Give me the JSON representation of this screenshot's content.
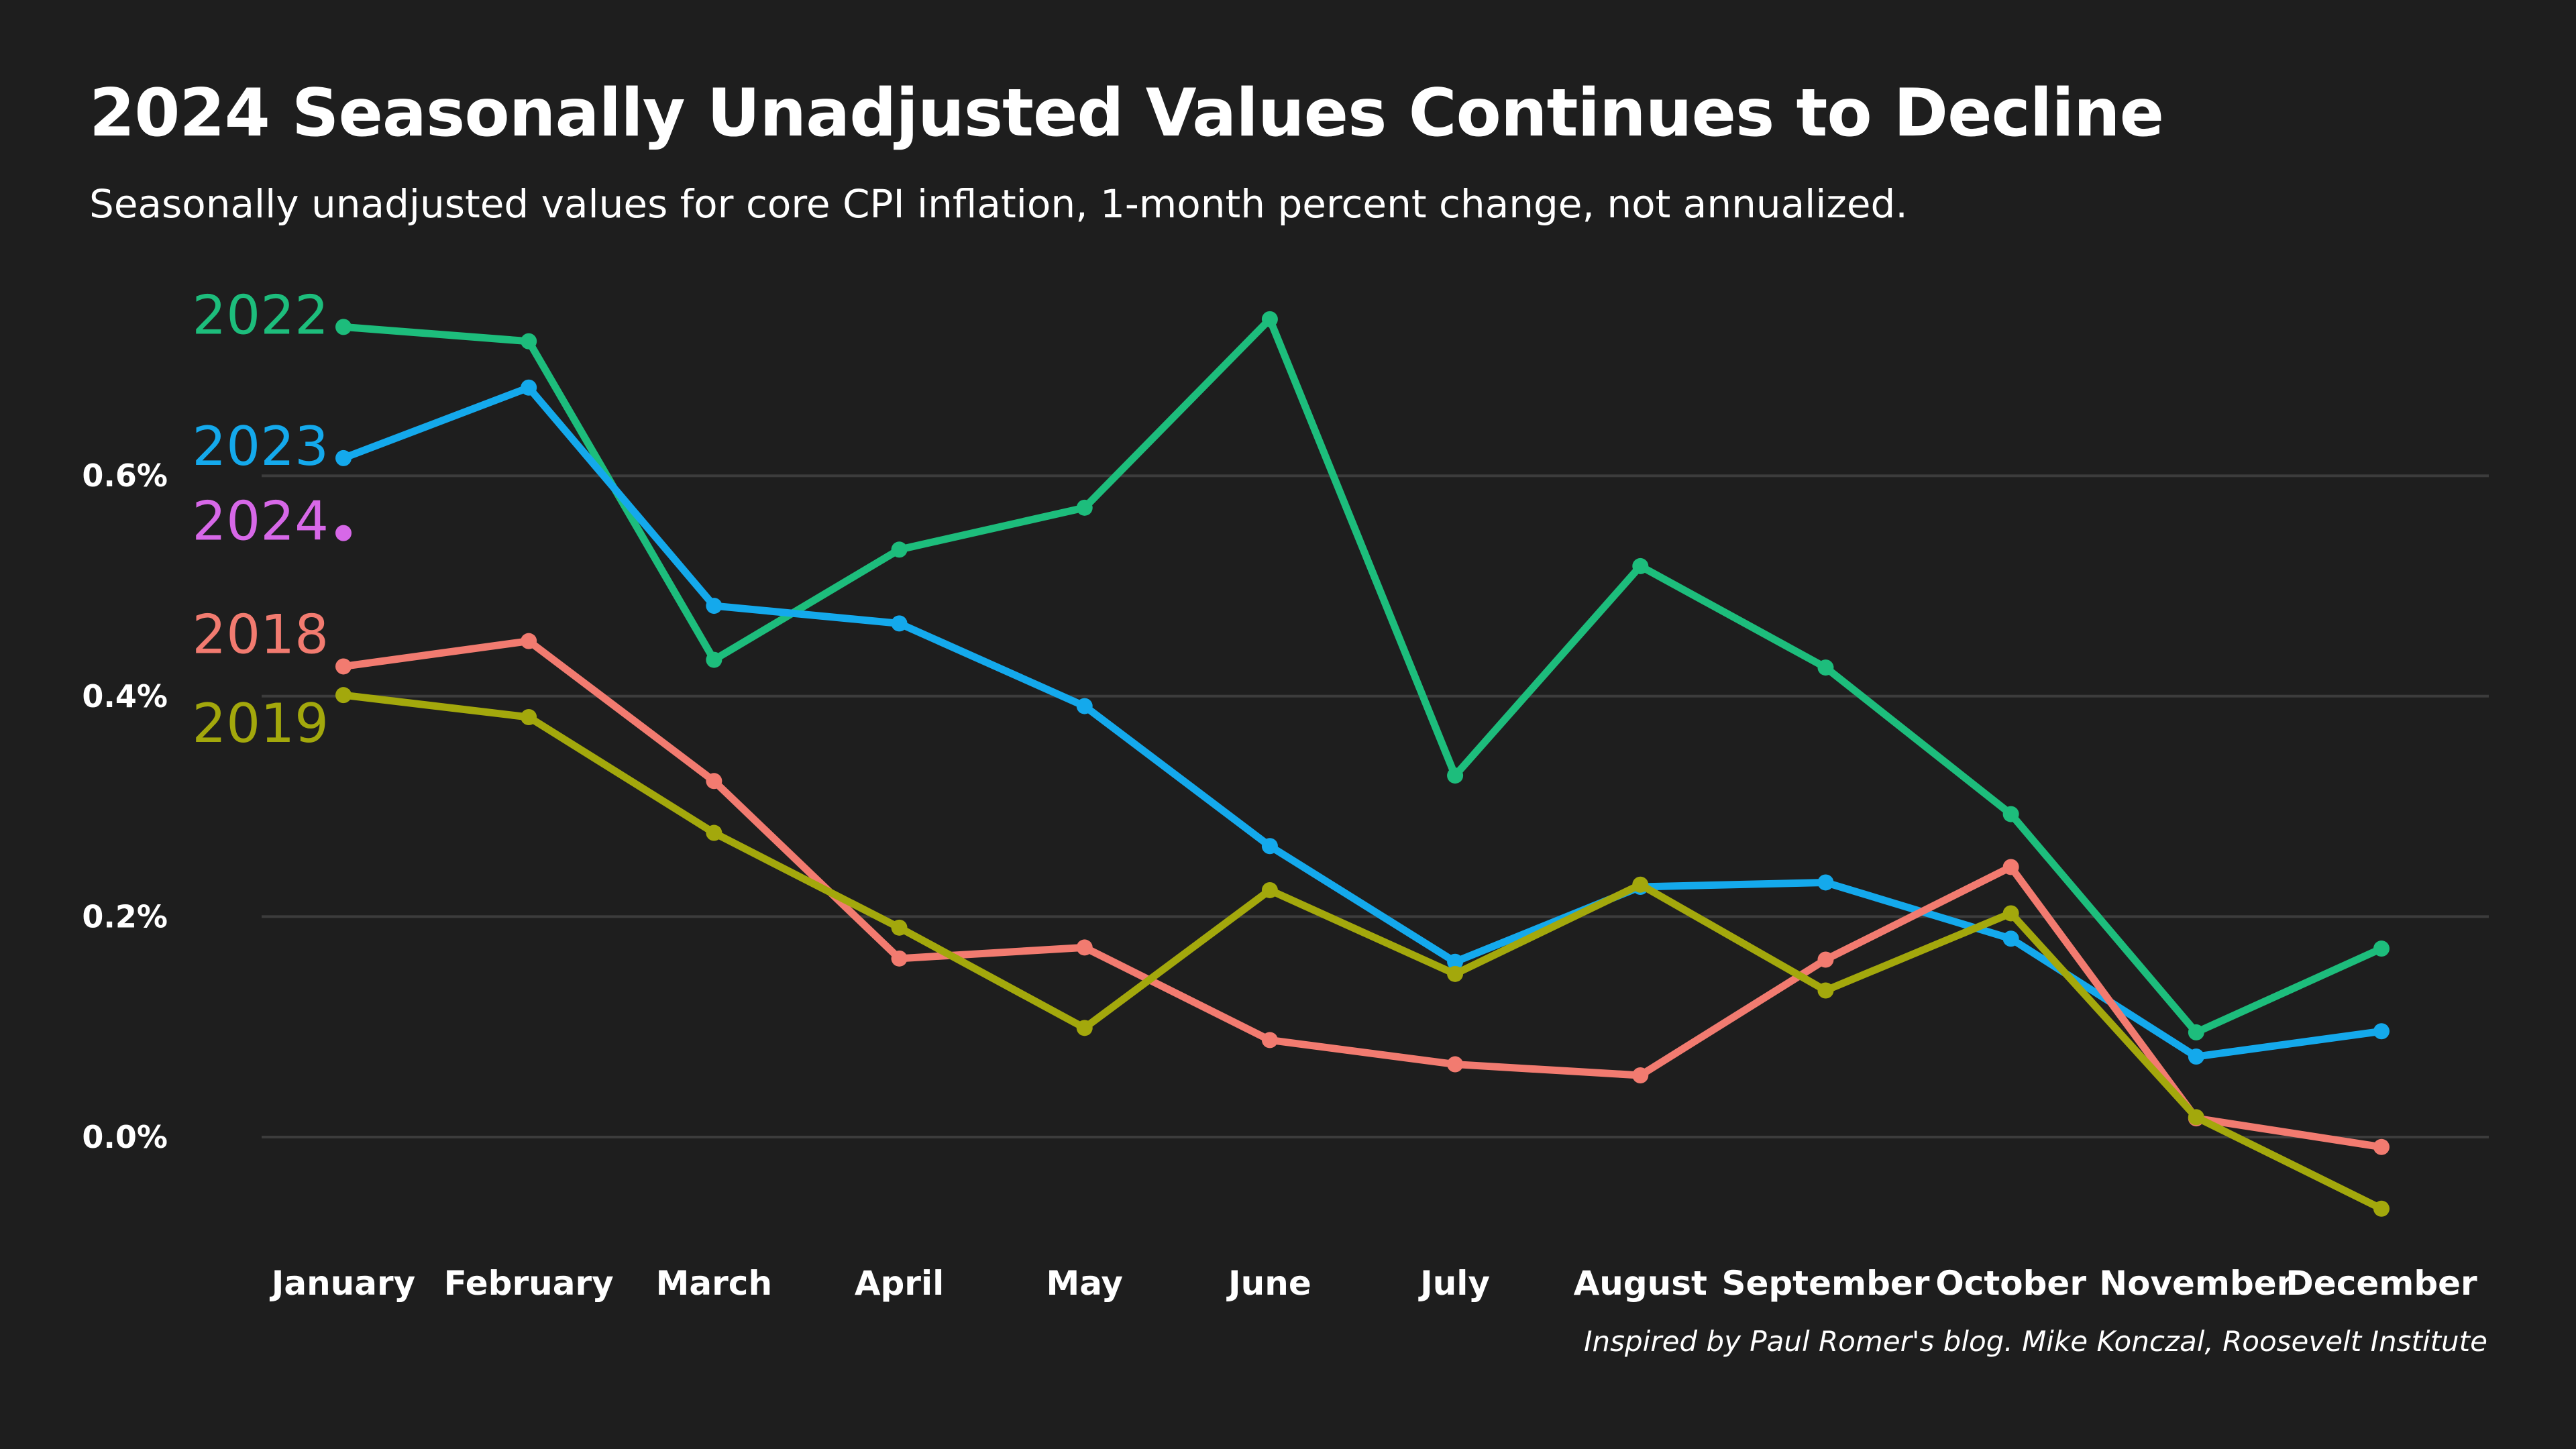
{
  "header": {
    "title": "2024 Seasonally Unadjusted Values Continues to Decline",
    "subtitle": "Seasonally unadjusted values for core CPI inflation, 1-month percent change, not annualized."
  },
  "footer": {
    "caption": "Inspired by Paul Romer's blog. Mike Konczal, Roosevelt Institute"
  },
  "chart_data": {
    "type": "line",
    "title": "2024 Seasonally Unadjusted Values Continues to Decline",
    "subtitle": "Seasonally unadjusted values for core CPI inflation, 1-month percent change, not annualized.",
    "xlabel": "",
    "ylabel": "",
    "categories": [
      "January",
      "February",
      "March",
      "April",
      "May",
      "June",
      "July",
      "August",
      "September",
      "October",
      "November",
      "December"
    ],
    "ylim": [
      -0.07,
      0.74
    ],
    "yticks": [
      0.0,
      0.2,
      0.4,
      0.6
    ],
    "ytick_labels": [
      "0.0%",
      "0.2%",
      "0.4%",
      "0.6%"
    ],
    "grid": "horizontal",
    "legend": "direct labels at left of lines",
    "series": [
      {
        "name": "2022",
        "color": "#1dbd7c",
        "values": [
          0.735,
          0.722,
          0.433,
          0.533,
          0.571,
          0.742,
          0.328,
          0.518,
          0.426,
          0.293,
          0.095,
          0.171
        ]
      },
      {
        "name": "2023",
        "color": "#14a9ec",
        "values": [
          0.616,
          0.68,
          0.482,
          0.466,
          0.391,
          0.264,
          0.159,
          0.227,
          0.231,
          0.18,
          0.073,
          0.096
        ]
      },
      {
        "name": "2024",
        "color": "#d768e8",
        "values": [
          0.548,
          null,
          null,
          null,
          null,
          null,
          null,
          null,
          null,
          null,
          null,
          null
        ]
      },
      {
        "name": "2018",
        "color": "#f27b70",
        "values": [
          0.427,
          0.45,
          0.323,
          0.162,
          0.172,
          0.088,
          0.066,
          0.056,
          0.161,
          0.245,
          0.017,
          -0.009
        ]
      },
      {
        "name": "2019",
        "color": "#a3a80c",
        "values": [
          0.401,
          0.381,
          0.276,
          0.19,
          0.099,
          0.224,
          0.148,
          0.229,
          0.133,
          0.203,
          0.018,
          -0.065
        ]
      }
    ]
  }
}
